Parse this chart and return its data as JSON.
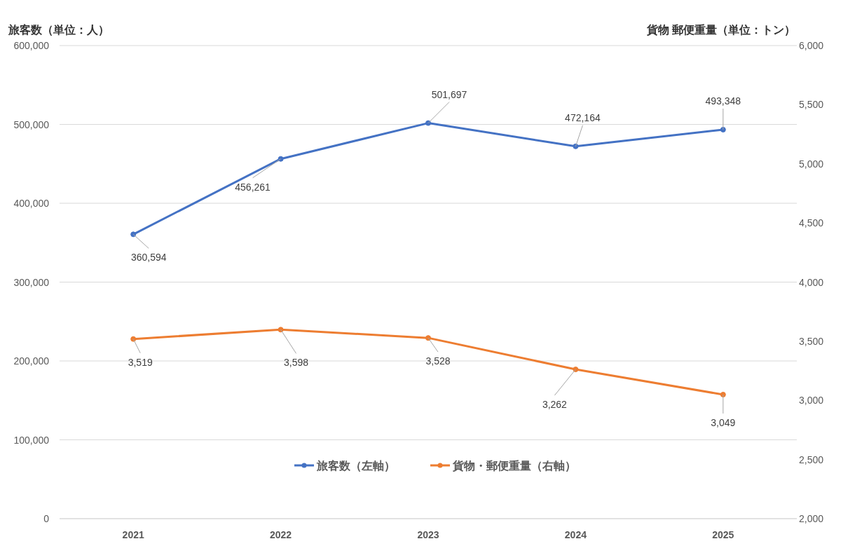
{
  "chart_data": {
    "type": "line",
    "categories": [
      "2021",
      "2022",
      "2023",
      "2024",
      "2025"
    ],
    "series": [
      {
        "name": "旅客数（左軸）",
        "color": "#4472c4",
        "values": [
          360594,
          456261,
          501697,
          472164,
          493348
        ],
        "value_labels": [
          "360,594",
          "456,261",
          "501,697",
          "472,164",
          "493,348"
        ]
      },
      {
        "name": "貨物・郵便重量（右軸）",
        "color": "#ed7d31",
        "axis": "y2",
        "values": [
          3519,
          3598,
          3528,
          3262,
          3049
        ],
        "value_labels": [
          "3,519",
          "3,598",
          "3,528",
          "3,262",
          "3,049"
        ]
      }
    ],
    "ylabel": "旅客数（単位：人）",
    "y2label": "貨物 郵便重量（単位：トン）",
    "ylim": [
      0,
      600000
    ],
    "yticks": [
      {
        "value": 0,
        "label": "0"
      },
      {
        "value": 100000,
        "label": "100,000"
      },
      {
        "value": 200000,
        "label": "200,000"
      },
      {
        "value": 300000,
        "label": "300,000"
      },
      {
        "value": 400000,
        "label": "400,000"
      },
      {
        "value": 500000,
        "label": "500,000"
      },
      {
        "value": 600000,
        "label": "600,000"
      }
    ],
    "y2lim": [
      2000,
      6000
    ],
    "y2ticks": [
      {
        "value": 2000,
        "label": "2,000"
      },
      {
        "value": 2500,
        "label": "2,500"
      },
      {
        "value": 3000,
        "label": "3,000"
      },
      {
        "value": 3500,
        "label": "3,500"
      },
      {
        "value": 4000,
        "label": "4,000"
      },
      {
        "value": 4500,
        "label": "4,500"
      },
      {
        "value": 5000,
        "label": "5,000"
      },
      {
        "value": 5500,
        "label": "5,500"
      },
      {
        "value": 6000,
        "label": "6,000"
      }
    ],
    "grid": "y",
    "legend": "bottom",
    "marker": "circle",
    "line_style": "solid"
  }
}
